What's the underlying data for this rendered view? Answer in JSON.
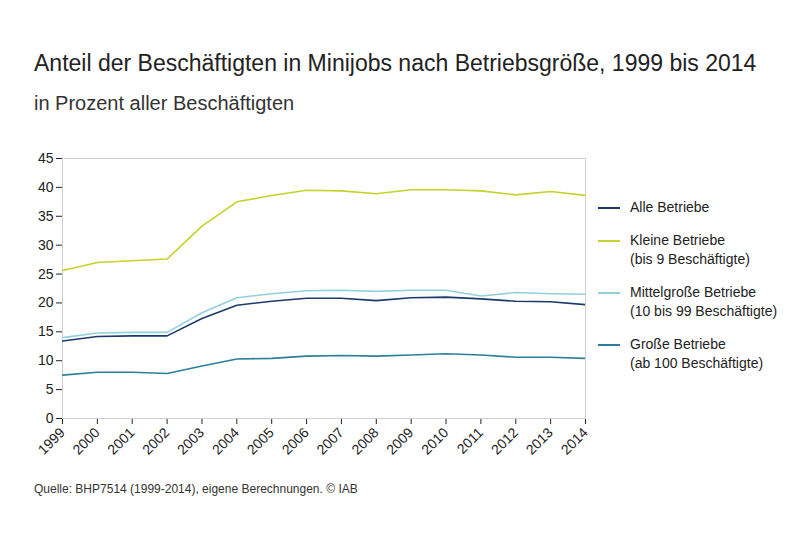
{
  "chart_data": {
    "type": "line",
    "title": "Anteil der Beschäftigten in Minijobs nach Betriebsgröße, 1999 bis 2014",
    "subtitle": "in Prozent aller Beschäftigten",
    "caption": "Quelle: BHP7514 (1999-2014), eigene Berechnungen. © IAB",
    "x": [
      1999,
      2000,
      2001,
      2002,
      2003,
      2004,
      2005,
      2006,
      2007,
      2008,
      2009,
      2010,
      2011,
      2012,
      2013,
      2014
    ],
    "xlim": [
      1999,
      2014
    ],
    "xticks": [
      1999,
      2000,
      2001,
      2002,
      2003,
      2004,
      2005,
      2006,
      2007,
      2008,
      2009,
      2010,
      2011,
      2012,
      2013,
      2014
    ],
    "ylim": [
      0,
      45
    ],
    "yticks": [
      0,
      5,
      10,
      15,
      20,
      25,
      30,
      35,
      40,
      45
    ],
    "grid": false,
    "legend": "right",
    "series": [
      {
        "name": "Alle Betriebe",
        "color": "#1b3a6b",
        "values": [
          13.4,
          14.2,
          14.3,
          14.3,
          17.3,
          19.6,
          20.3,
          20.8,
          20.8,
          20.4,
          20.9,
          21.0,
          20.7,
          20.3,
          20.2,
          19.7
        ]
      },
      {
        "name": "Kleine Betriebe\n(bis 9 Beschäftigte)",
        "color": "#c5d22b",
        "values": [
          25.6,
          27.0,
          27.3,
          27.6,
          33.3,
          37.5,
          38.6,
          39.5,
          39.4,
          38.9,
          39.6,
          39.6,
          39.4,
          38.7,
          39.3,
          38.6
        ]
      },
      {
        "name": "Mittelgroße Betriebe\n(10 bis 99 Beschäftigte)",
        "color": "#93d1da",
        "values": [
          14.0,
          14.8,
          14.9,
          14.9,
          18.3,
          20.9,
          21.6,
          22.1,
          22.2,
          22.0,
          22.2,
          22.2,
          21.2,
          21.8,
          21.6,
          21.5
        ]
      },
      {
        "name": "Große Betriebe\n(ab 100 Beschäftigte)",
        "color": "#2b7f99",
        "values": [
          7.5,
          8.0,
          8.0,
          7.8,
          9.1,
          10.3,
          10.4,
          10.8,
          10.9,
          10.8,
          11.0,
          11.2,
          11.0,
          10.6,
          10.6,
          10.4
        ]
      }
    ]
  }
}
